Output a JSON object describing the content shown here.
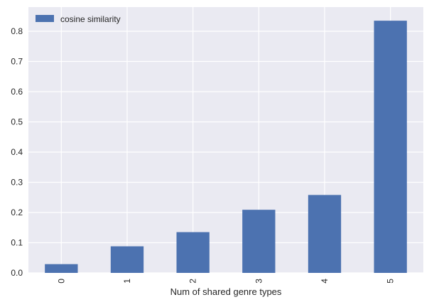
{
  "chart_data": {
    "type": "bar",
    "title": "",
    "xlabel": "Num of shared genre types",
    "ylabel": "",
    "categories": [
      "0",
      "1",
      "2",
      "3",
      "4",
      "5"
    ],
    "series": [
      {
        "name": "cosine similarity",
        "values": [
          0.029,
          0.088,
          0.135,
          0.209,
          0.258,
          0.835
        ]
      }
    ],
    "yticks": [
      "0.0",
      "0.1",
      "0.2",
      "0.3",
      "0.4",
      "0.5",
      "0.6",
      "0.7",
      "0.8"
    ],
    "ylim": [
      0,
      0.88
    ],
    "grid": true,
    "legend_position": "top-left",
    "colors": {
      "bar": "#4c72b0",
      "plot_background": "#eaeaf2",
      "grid": "#ffffff"
    }
  }
}
